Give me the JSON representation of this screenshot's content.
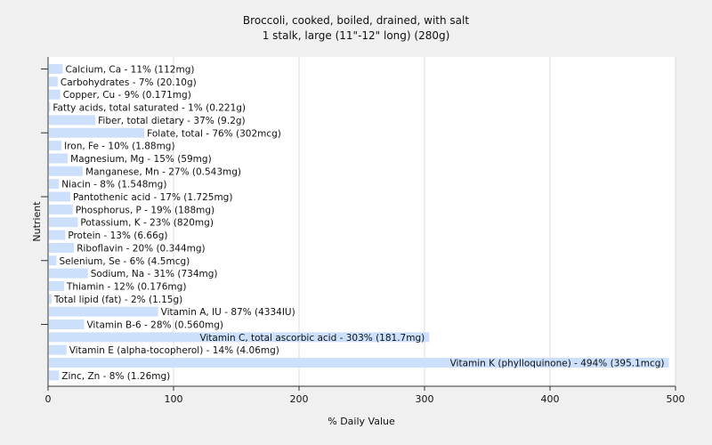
{
  "chart_data": {
    "type": "bar",
    "orientation": "horizontal",
    "title": "Broccoli, cooked, boiled, drained, with salt",
    "subtitle": "1 stalk, large (11\"-12\" long) (280g)",
    "xlabel": "% Daily Value",
    "ylabel": "Nutrient",
    "xlim": [
      0,
      500
    ],
    "xticks": [
      "0",
      "100",
      "200",
      "300",
      "400",
      "500"
    ],
    "grid": true,
    "bar_color": "#cce0fb",
    "background": "#f0f0f0",
    "plot_background": "#ffffff",
    "categories": [
      "Calcium, Ca",
      "Carbohydrates",
      "Copper, Cu",
      "Fatty acids, total saturated",
      "Fiber, total dietary",
      "Folate, total",
      "Iron, Fe",
      "Magnesium, Mg",
      "Manganese, Mn",
      "Niacin",
      "Pantothenic acid",
      "Phosphorus, P",
      "Potassium, K",
      "Protein",
      "Riboflavin",
      "Selenium, Se",
      "Sodium, Na",
      "Thiamin",
      "Total lipid (fat)",
      "Vitamin A, IU",
      "Vitamin B-6",
      "Vitamin C, total ascorbic acid",
      "Vitamin E (alpha-tocopherol)",
      "Vitamin K (phylloquinone)",
      "Zinc, Zn"
    ],
    "values": [
      11,
      7,
      9,
      1,
      37,
      76,
      10,
      15,
      27,
      8,
      17,
      19,
      23,
      13,
      20,
      6,
      31,
      12,
      2,
      87,
      28,
      303,
      14,
      494,
      8
    ],
    "labels": [
      "Calcium, Ca - 11% (112mg)",
      "Carbohydrates - 7% (20.10g)",
      "Copper, Cu - 9% (0.171mg)",
      "Fatty acids, total saturated - 1% (0.221g)",
      "Fiber, total dietary - 37% (9.2g)",
      "Folate, total - 76% (302mcg)",
      "Iron, Fe - 10% (1.88mg)",
      "Magnesium, Mg - 15% (59mg)",
      "Manganese, Mn - 27% (0.543mg)",
      "Niacin - 8% (1.548mg)",
      "Pantothenic acid - 17% (1.725mg)",
      "Phosphorus, P - 19% (188mg)",
      "Potassium, K - 23% (820mg)",
      "Protein - 13% (6.66g)",
      "Riboflavin - 20% (0.344mg)",
      "Selenium, Se - 6% (4.5mcg)",
      "Sodium, Na - 31% (734mg)",
      "Thiamin - 12% (0.176mg)",
      "Total lipid (fat) - 2% (1.15g)",
      "Vitamin A, IU - 87% (4334IU)",
      "Vitamin B-6 - 28% (0.560mg)",
      "Vitamin C, total ascorbic acid - 303% (181.7mg)",
      "Vitamin E (alpha-tocopherol) - 14% (4.06mg)",
      "Vitamin K (phylloquinone) - 494% (395.1mcg)",
      "Zinc, Zn - 8% (1.26mg)"
    ]
  }
}
